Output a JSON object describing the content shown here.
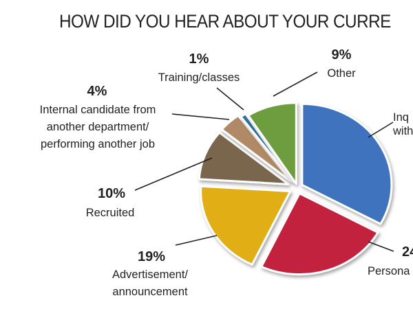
{
  "title": "HOW DID YOU HEAR ABOUT YOUR CURRE",
  "chart_data": {
    "type": "pie",
    "title": "HOW DID YOU HEAR ABOUT YOUR CURRE",
    "slices": [
      {
        "id": "inquired",
        "label_lines": [
          "Inq",
          "with"
        ],
        "pct_text": "",
        "value": 33,
        "color": "#3f73be"
      },
      {
        "id": "personal",
        "label_lines": [
          "Persona"
        ],
        "pct_text": "24",
        "value": 24,
        "color": "#c2223d"
      },
      {
        "id": "advertisement",
        "label_lines": [
          "Advertisement/",
          "announcement"
        ],
        "pct_text": "19%",
        "value": 19,
        "color": "#e2ae17"
      },
      {
        "id": "recruited",
        "label_lines": [
          "Recruited"
        ],
        "pct_text": "10%",
        "value": 10,
        "color": "#7a664e"
      },
      {
        "id": "internal",
        "label_lines": [
          "Internal candidate from",
          "another department/",
          "performing another job"
        ],
        "pct_text": "4%",
        "value": 4,
        "color": "#b08a66"
      },
      {
        "id": "training",
        "label_lines": [
          "Training/classes"
        ],
        "pct_text": "1%",
        "value": 1,
        "color": "#2f6f9d"
      },
      {
        "id": "other",
        "label_lines": [
          "Other"
        ],
        "pct_text": "9%",
        "value": 9,
        "color": "#6e9d40"
      }
    ]
  }
}
